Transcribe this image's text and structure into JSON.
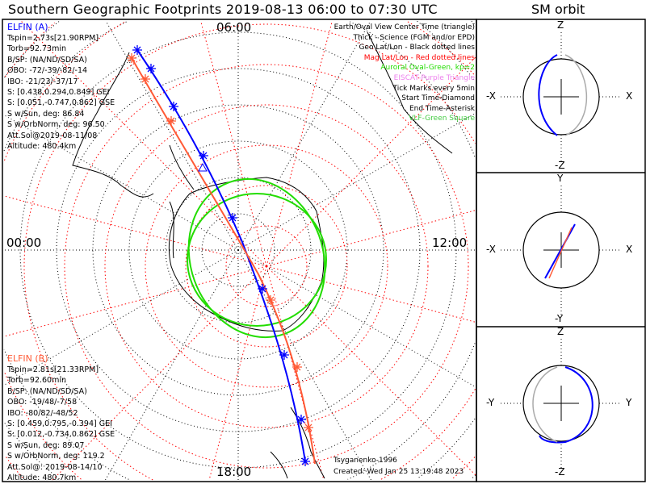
{
  "title": "Southern Geographic Footprints 2019-08-13 06:00 to 07:30 UTC",
  "sm_title": "SM orbit",
  "time_labels": {
    "top": "06:00",
    "left": "00:00",
    "right": "12:00",
    "bottom": "18:00"
  },
  "elfin_a": {
    "name": "ELFIN (A)",
    "lines": [
      "Tspin=2.73s[21.90RPM]",
      "Torb=92.73min",
      "B/SP: (NA/ND/SD/SA)",
      "OBO: -72/-39/-82/-14",
      "IBO: -21/23/-37/17",
      "S: [0.438,0.294,0.849] GEI",
      "S: [0.051,-0.747,0.862] GSE",
      "S w/Sun, deg: 86.84",
      "S w/OrbNorm, deg: 96.50",
      "Att.Sol@2019-08-11/08",
      "Altitude: 480.4km"
    ],
    "color": "#0000ff"
  },
  "elfin_b": {
    "name": "ELFIN (B)",
    "lines": [
      "Tspin=2.81s[21.33RPM]",
      "Torb=92.60min",
      "B/SP: (NA/ND/SD/SA)",
      "OBO: -19/48/-7/58",
      "IBO: -80/82/-48/52",
      "S: [0.459,0.795,-0.394] GEI",
      "S: [0.012,-0.734,0.862] GSE",
      "S w/Sun, deg: 89.07",
      "S w/OrbNorm, deg: 119.2",
      "Att.Sol@: 2019-08-14/10",
      "Altitude: 480.7km"
    ],
    "color": "#ff5a36"
  },
  "legend": [
    {
      "text": "Earth/Oval View Center Time (triangle)",
      "color": "#000000"
    },
    {
      "text": "Thick - Science (FGM and/or EPD)",
      "color": "#000000"
    },
    {
      "text": "Geo Lat/Lon - Black dotted lines",
      "color": "#000000"
    },
    {
      "text": "Mag Lat/Lon - Red dotted lines",
      "color": "#ff0000"
    },
    {
      "text": "Auroral Oval-Green, kp=2",
      "color": "#22dd00"
    },
    {
      "text": "EISCAT-Purple Triangle",
      "color": "#ee82ee"
    },
    {
      "text": "Tick Marks every 5min",
      "color": "#000000"
    },
    {
      "text": "Start Time-Diamond",
      "color": "#000000"
    },
    {
      "text": "End Time-Asterisk",
      "color": "#000000"
    },
    {
      "text": "VLF-Green Square",
      "color": "#44cc44"
    }
  ],
  "credits": {
    "model": "Tsyganenko-1996",
    "created": "Created: Wed Jan 25 13:19:48 2023"
  },
  "sm_panels": [
    {
      "top": "Z",
      "bottom": "-Z",
      "left": "-X",
      "right": "X"
    },
    {
      "top": "Y",
      "bottom": "-Y",
      "left": "-X",
      "right": "X"
    },
    {
      "top": "Z",
      "bottom": "-Z",
      "left": "-Y",
      "right": "Y"
    }
  ]
}
